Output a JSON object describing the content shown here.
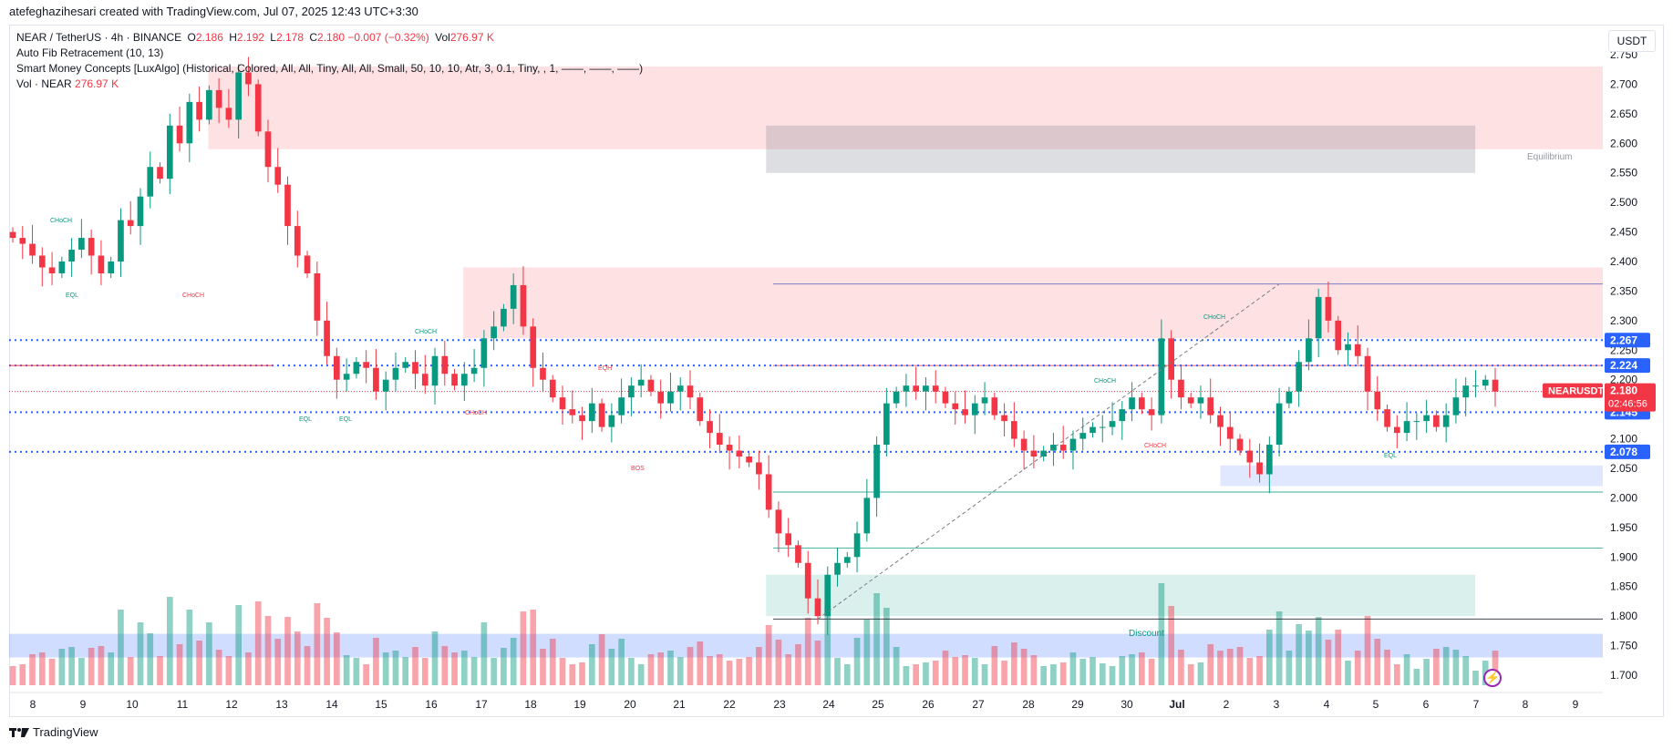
{
  "header": {
    "author_line": "atefeghazihesari created with TradingView.com, Jul 07, 2025 12:43 UTC+3:30"
  },
  "legend": {
    "symbol": "NEAR / TetherUS · 4h · BINANCE",
    "o_label": "O",
    "o_value": "2.186",
    "h_label": "H",
    "h_value": "2.192",
    "l_label": "L",
    "l_value": "2.178",
    "c_label": "C",
    "c_value": "2.180",
    "change": "−0.007 (−0.32%)",
    "vol_label": "Vol",
    "vol_value": "276.97 K",
    "indicator_fib": "Auto Fib Retracement (10, 13)",
    "indicator_smc": "Smart Money Concepts [LuxAlgo] (Historical, Colored, All, All, Tiny, All, All, Small, 50, 10, 10, Atr, 3, 0.1, Tiny, , 1, ——, ——, ——)",
    "indicator_vol_label": "Vol · NEAR",
    "indicator_vol_value": "276.97 K"
  },
  "currency": "USDT",
  "footer": {
    "brand": "TradingView"
  },
  "colors": {
    "up": "#089981",
    "down": "#f23645",
    "blue": "#2962ff",
    "premium": "#f23645",
    "discount": "#089981"
  },
  "chart_data": {
    "type": "candlestick",
    "symbol": "NEARUSDT",
    "interval": "4h",
    "ylim": [
      1.68,
      2.78
    ],
    "y_ticks": [
      "1.700",
      "1.750",
      "1.800",
      "1.850",
      "1.900",
      "1.950",
      "2.000",
      "2.050",
      "2.100",
      "2.150",
      "2.200",
      "2.250",
      "2.300",
      "2.350",
      "2.400",
      "2.450",
      "2.500",
      "2.550",
      "2.600",
      "2.650",
      "2.700",
      "2.750"
    ],
    "x_ticks": [
      "8",
      "9",
      "10",
      "11",
      "12",
      "13",
      "14",
      "15",
      "16",
      "17",
      "18",
      "19",
      "20",
      "21",
      "22",
      "23",
      "24",
      "25",
      "26",
      "27",
      "28",
      "29",
      "30",
      "Jul",
      "2",
      "3",
      "4",
      "5",
      "6",
      "7",
      "8",
      "9"
    ],
    "close_path": [
      2.44,
      2.43,
      2.41,
      2.39,
      2.38,
      2.4,
      2.42,
      2.44,
      2.41,
      2.38,
      2.4,
      2.47,
      2.46,
      2.51,
      2.56,
      2.54,
      2.63,
      2.6,
      2.67,
      2.64,
      2.69,
      2.66,
      2.64,
      2.72,
      2.7,
      2.62,
      2.56,
      2.53,
      2.46,
      2.41,
      2.38,
      2.3,
      2.24,
      2.2,
      2.21,
      2.23,
      2.22,
      2.18,
      2.2,
      2.22,
      2.23,
      2.21,
      2.19,
      2.24,
      2.21,
      2.19,
      2.21,
      2.22,
      2.27,
      2.29,
      2.32,
      2.36,
      2.29,
      2.22,
      2.2,
      2.17,
      2.15,
      2.14,
      2.13,
      2.16,
      2.12,
      2.14,
      2.17,
      2.19,
      2.2,
      2.18,
      2.16,
      2.18,
      2.19,
      2.17,
      2.13,
      2.11,
      2.09,
      2.08,
      2.07,
      2.06,
      2.04,
      1.98,
      1.94,
      1.92,
      1.89,
      1.83,
      1.8,
      1.87,
      1.89,
      1.9,
      1.94,
      2.0,
      2.09,
      2.16,
      2.18,
      2.19,
      2.18,
      2.19,
      2.18,
      2.16,
      2.15,
      2.14,
      2.16,
      2.17,
      2.14,
      2.13,
      2.1,
      2.08,
      2.07,
      2.08,
      2.09,
      2.08,
      2.1,
      2.11,
      2.12,
      2.12,
      2.13,
      2.15,
      2.17,
      2.15,
      2.14,
      2.27,
      2.2,
      2.17,
      2.16,
      2.17,
      2.14,
      2.12,
      2.1,
      2.08,
      2.06,
      2.04,
      2.09,
      2.16,
      2.18,
      2.23,
      2.27,
      2.34,
      2.3,
      2.25,
      2.26,
      2.24,
      2.18,
      2.15,
      2.12,
      2.11,
      2.13,
      2.13,
      2.14,
      2.12,
      2.14,
      2.17,
      2.19,
      2.19,
      2.2,
      2.18
    ],
    "last_price": "2.180",
    "last_symbol": "NEARUSDT",
    "countdown": "02:46:56",
    "price_labels": [
      {
        "value": 2.267,
        "text": "2.267",
        "style": "blue"
      },
      {
        "value": 2.224,
        "text": "2.224",
        "style": "blue"
      },
      {
        "value": 2.145,
        "text": "2.145",
        "style": "blue"
      },
      {
        "value": 2.078,
        "text": "2.078",
        "style": "blue"
      }
    ],
    "levels": [
      {
        "value": 2.267,
        "color": "#2962ff",
        "style": "dotted"
      },
      {
        "value": 2.224,
        "color": "#2962ff",
        "style": "dotted"
      },
      {
        "value": 2.145,
        "color": "#2962ff",
        "style": "dotted"
      },
      {
        "value": 2.078,
        "color": "#2962ff",
        "style": "dotted"
      }
    ],
    "zones": [
      {
        "name": "premium-top",
        "y0": 2.59,
        "y1": 2.73,
        "x0": 0.125,
        "x1": 1.0,
        "color": "#f23645"
      },
      {
        "name": "equilibrium",
        "y0": 2.55,
        "y1": 2.63,
        "x0": 0.475,
        "x1": 0.92,
        "color": "#787b86"
      },
      {
        "name": "premium-mid",
        "y0": 2.27,
        "y1": 2.39,
        "x0": 0.285,
        "x1": 1.0,
        "color": "#f23645"
      },
      {
        "name": "discount",
        "y0": 1.8,
        "y1": 1.87,
        "x0": 0.475,
        "x1": 0.92,
        "color": "#089981"
      },
      {
        "name": "demand-blue",
        "y0": 2.02,
        "y1": 2.055,
        "x0": 0.76,
        "x1": 1.0,
        "color": "#2962ff"
      },
      {
        "name": "volume-band",
        "y0": 1.73,
        "y1": 1.77,
        "x0": 0.0,
        "x1": 1.0,
        "color": "#2962ff"
      }
    ],
    "annotations": [
      {
        "text": "CHoCH",
        "color": "#089981"
      },
      {
        "text": "EQL",
        "color": "#089981"
      },
      {
        "text": "CHoCH",
        "color": "#f23645"
      },
      {
        "text": "CHoCH",
        "color": "#089981"
      },
      {
        "text": "EQL",
        "color": "#089981"
      },
      {
        "text": "EQL",
        "color": "#089981"
      },
      {
        "text": "CHoCH",
        "color": "#f23645"
      },
      {
        "text": "EQH",
        "color": "#f23645"
      },
      {
        "text": "BOS",
        "color": "#f23645"
      },
      {
        "text": "CHoCH",
        "color": "#089981"
      },
      {
        "text": "CHoCH",
        "color": "#089981"
      },
      {
        "text": "CHoCH",
        "color": "#f23645"
      },
      {
        "text": "EQL",
        "color": "#089981"
      },
      {
        "text": "Equilibrium",
        "color": "#9598a1"
      },
      {
        "text": "Discount",
        "color": "#089981"
      }
    ]
  }
}
